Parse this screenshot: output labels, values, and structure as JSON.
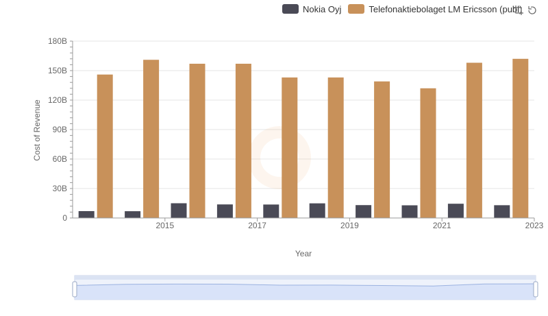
{
  "chart_data": {
    "type": "bar",
    "title": "",
    "xlabel": "Year",
    "ylabel": "Cost of Revenue",
    "ylim": [
      0,
      180
    ],
    "yticks": [
      0,
      30,
      60,
      90,
      120,
      150,
      180
    ],
    "ytick_labels": [
      "0",
      "30B",
      "60B",
      "90B",
      "120B",
      "150B",
      "180B"
    ],
    "categories": [
      "2014",
      "2015",
      "2016",
      "2017",
      "2018",
      "2019",
      "2020",
      "2021",
      "2022",
      "2023"
    ],
    "xtick_labels": [
      "2015",
      "2017",
      "2019",
      "2021",
      "2023"
    ],
    "series": [
      {
        "name": "Nokia Oyj",
        "color": "#4a4a56",
        "values": [
          7.0,
          6.9,
          15.0,
          13.8,
          13.7,
          14.9,
          13.1,
          12.9,
          14.5,
          13.0
        ]
      },
      {
        "name": "Telefonaktiebolaget LM Ericsson (publ)",
        "color": "#c8915a",
        "values": [
          146,
          161,
          157,
          157,
          143,
          143,
          139,
          132,
          158,
          162
        ]
      }
    ],
    "legend_position": "top-right",
    "grid": true
  },
  "colors": {
    "zoom_fill": "#d6e1f8",
    "zoom_line": "#9bb2e0",
    "grid": "#e6e6e6"
  }
}
